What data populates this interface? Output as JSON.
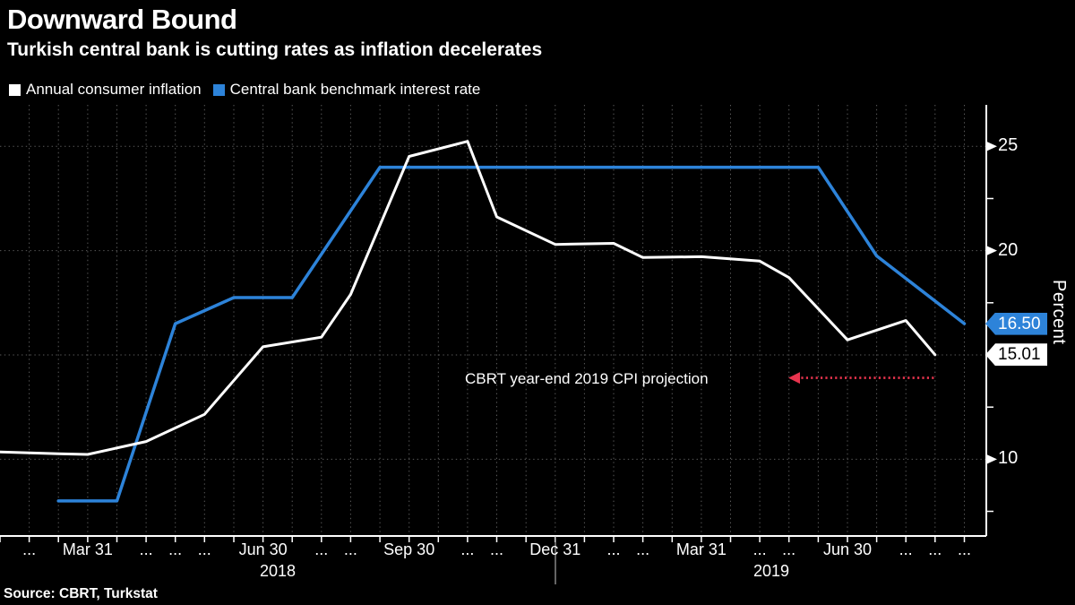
{
  "title": "Downward Bound",
  "subtitle": "Turkish central bank is cutting rates as inflation decelerates",
  "source": "Source: CBRT, Turkstat",
  "colors": {
    "background": "#000000",
    "text": "#ffffff",
    "inflation_line": "#ffffff",
    "rate_line": "#2d83d9",
    "projection_red": "#e8344e",
    "gridline": "#5a5a5a",
    "axis": "#ffffff",
    "year_divider": "#c8c8c8"
  },
  "legend": [
    {
      "label": "Annual consumer inflation",
      "color": "#ffffff"
    },
    {
      "label": "Central bank benchmark interest rate",
      "color": "#2d83d9"
    }
  ],
  "y_axis": {
    "title": "Percent",
    "tick_labels": [
      {
        "value": 25,
        "text": "25"
      },
      {
        "value": 20,
        "text": "20"
      },
      {
        "value": 10,
        "text": "10"
      }
    ],
    "gridline_values": [
      25,
      20,
      15,
      10
    ],
    "minor_tick_values": [
      22.5,
      17.5,
      12.5,
      7.5
    ]
  },
  "x_axis": {
    "tick_count": 34,
    "month_labels": [
      {
        "t": 1,
        "text": "..."
      },
      {
        "t": 3,
        "text": "Mar 31"
      },
      {
        "t": 5,
        "text": "..."
      },
      {
        "t": 6,
        "text": "..."
      },
      {
        "t": 7,
        "text": "..."
      },
      {
        "t": 9,
        "text": "Jun 30"
      },
      {
        "t": 11,
        "text": "..."
      },
      {
        "t": 12,
        "text": "..."
      },
      {
        "t": 14,
        "text": "Sep 30"
      },
      {
        "t": 16,
        "text": "..."
      },
      {
        "t": 17,
        "text": "..."
      },
      {
        "t": 19,
        "text": "Dec 31"
      },
      {
        "t": 21,
        "text": "..."
      },
      {
        "t": 22,
        "text": "..."
      },
      {
        "t": 24,
        "text": "Mar 31"
      },
      {
        "t": 26,
        "text": "..."
      },
      {
        "t": 27,
        "text": "..."
      },
      {
        "t": 29,
        "text": "Jun 30"
      },
      {
        "t": 31,
        "text": "..."
      },
      {
        "t": 32,
        "text": "..."
      },
      {
        "t": 33,
        "text": "..."
      }
    ],
    "year_labels": [
      {
        "text": "2018",
        "x": 310
      },
      {
        "text": "2019",
        "x": 861
      }
    ],
    "year_divider_x": 620
  },
  "badges": [
    {
      "text": "16.50",
      "value": 16.5,
      "bg": "#2d83d9",
      "fg": "#ffffff"
    },
    {
      "text": "15.01",
      "value": 15.01,
      "bg": "#ffffff",
      "fg": "#000000"
    }
  ],
  "annotation": {
    "text": "CBRT year-end 2019 CPI projection",
    "value": 13.9,
    "x_start": 889,
    "x_end": 1045,
    "color": "#e8344e"
  },
  "chart_data": {
    "type": "line",
    "title": "Downward Bound",
    "subtitle": "Turkish central bank is cutting rates as inflation decelerates",
    "source": "Source: CBRT, Turkstat",
    "ylabel": "Percent",
    "ylim": [
      6.5,
      26.8
    ],
    "yticks": [
      10,
      15,
      20,
      25
    ],
    "x_range": "Jan 2018 - Sep 2019",
    "grid": true,
    "legend_position": "top-left",
    "end_value_labels": [
      "16.50",
      "15.01"
    ],
    "annotation": {
      "label": "CBRT year-end 2019 CPI projection",
      "value": 13.9
    },
    "series": [
      {
        "name": "Annual consumer inflation",
        "color": "#ffffff",
        "unit": "%",
        "points": [
          {
            "date": "Jan 2018",
            "t": 0,
            "value": 10.35
          },
          {
            "date": "Feb 2018",
            "t": 2,
            "value": 10.26
          },
          {
            "date": "Mar 2018",
            "t": 3,
            "value": 10.23
          },
          {
            "date": "Apr 2018",
            "t": 5,
            "value": 10.85
          },
          {
            "date": "May 2018",
            "t": 7,
            "value": 12.15
          },
          {
            "date": "Jun 2018",
            "t": 9,
            "value": 15.39
          },
          {
            "date": "Jul 2018",
            "t": 11,
            "value": 15.85
          },
          {
            "date": "Aug 2018",
            "t": 12,
            "value": 17.9
          },
          {
            "date": "Sep 2018",
            "t": 14,
            "value": 24.52
          },
          {
            "date": "Oct 2018",
            "t": 16,
            "value": 25.24
          },
          {
            "date": "Nov 2018",
            "t": 17,
            "value": 21.62
          },
          {
            "date": "Dec 2018",
            "t": 19,
            "value": 20.3
          },
          {
            "date": "Jan 2019",
            "t": 21,
            "value": 20.35
          },
          {
            "date": "Feb 2019",
            "t": 22,
            "value": 19.67
          },
          {
            "date": "Mar 2019",
            "t": 24,
            "value": 19.71
          },
          {
            "date": "Apr 2019",
            "t": 26,
            "value": 19.5
          },
          {
            "date": "May 2019",
            "t": 27,
            "value": 18.71
          },
          {
            "date": "Jun 2019",
            "t": 29,
            "value": 15.72
          },
          {
            "date": "Jul 2019",
            "t": 31,
            "value": 16.65
          },
          {
            "date": "Aug 2019",
            "t": 32,
            "value": 15.01
          }
        ]
      },
      {
        "name": "Central bank benchmark interest rate",
        "color": "#2d83d9",
        "unit": "%",
        "points": [
          {
            "date": "Feb 2018",
            "t": 2,
            "value": 8.0
          },
          {
            "date": "Apr 2018",
            "t": 4,
            "value": 8.0
          },
          {
            "date": "Jun 2018",
            "t": 6,
            "value": 16.5
          },
          {
            "date": "Jun 2018",
            "t": 8,
            "value": 17.75
          },
          {
            "date": "Aug 2018",
            "t": 10,
            "value": 17.75
          },
          {
            "date": "Sep 2018",
            "t": 13,
            "value": 24.0
          },
          {
            "date": "Jun 2019",
            "t": 28,
            "value": 24.0
          },
          {
            "date": "Jul 2019",
            "t": 30,
            "value": 19.75
          },
          {
            "date": "Sep 2019",
            "t": 33,
            "value": 16.5
          }
        ]
      }
    ]
  }
}
